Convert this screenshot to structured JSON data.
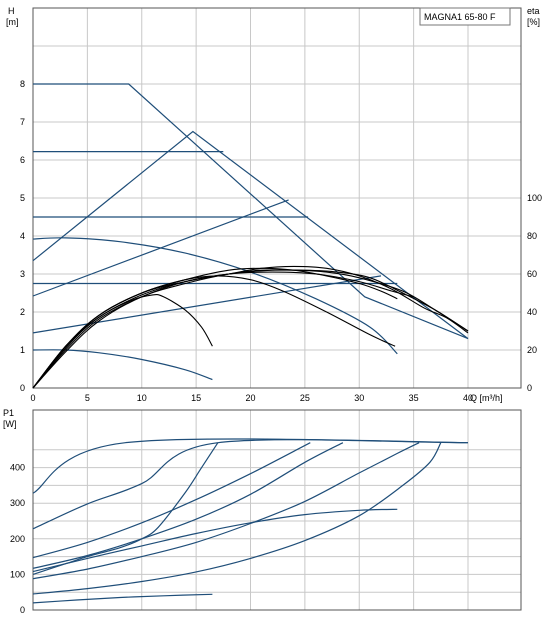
{
  "chart_data": [
    {
      "type": "line",
      "title": "MAGNA1 65-80 F",
      "ylabel_left": "H",
      "ylabel_left_unit": "[m]",
      "ylabel_right": "eta",
      "ylabel_right_unit": "[%]",
      "xlabel": "Q [m³/h]",
      "xlim": [
        0,
        40
      ],
      "ylim_left": [
        0,
        10
      ],
      "ylim_right": [
        0,
        200
      ],
      "x_ticks": [
        "0",
        "5",
        "10",
        "15",
        "20",
        "25",
        "30",
        "35",
        "40"
      ],
      "y_ticks_left": [
        "0",
        "1",
        "2",
        "3",
        "4",
        "5",
        "6",
        "7",
        "8"
      ],
      "y_ticks_right": [
        "0",
        "20",
        "40",
        "60",
        "80",
        "100"
      ],
      "grid": true,
      "head_lines": [
        {
          "points": [
            [
              0,
              8.0
            ],
            [
              8.8,
              8.0
            ],
            [
              30.5,
              2.4
            ],
            [
              40,
              1.3
            ]
          ]
        },
        {
          "points": [
            [
              0,
              6.22
            ],
            [
              17.5,
              6.22
            ]
          ]
        },
        {
          "points": [
            [
              0,
              4.5
            ],
            [
              25.3,
              4.5
            ]
          ]
        },
        {
          "points": [
            [
              0,
              2.75
            ],
            [
              33.5,
              2.75
            ]
          ]
        },
        {
          "points": [
            [
              0,
              3.35
            ],
            [
              14.7,
              6.75
            ],
            [
              40,
              1.3
            ]
          ]
        },
        {
          "points": [
            [
              0,
              2.42
            ],
            [
              23.5,
              4.95
            ]
          ]
        },
        {
          "points": [
            [
              0,
              1.45
            ],
            [
              32,
              2.95
            ]
          ]
        }
      ],
      "proportional_curves": [
        {
          "points": [
            [
              0,
              3.92
            ],
            [
              3,
              3.95
            ],
            [
              8,
              3.85
            ],
            [
              14,
              3.55
            ],
            [
              20,
              3.05
            ],
            [
              26,
              2.35
            ],
            [
              31,
              1.6
            ],
            [
              33.5,
              0.9
            ]
          ]
        },
        {
          "points": [
            [
              0,
              1.0
            ],
            [
              3,
              1.0
            ],
            [
              6,
              0.93
            ],
            [
              10,
              0.75
            ],
            [
              14,
              0.48
            ],
            [
              16.5,
              0.22
            ]
          ]
        }
      ],
      "efficiency_curves": [
        {
          "points": [
            [
              0,
              0
            ],
            [
              3,
              22
            ],
            [
              6,
              38
            ],
            [
              10,
              50
            ],
            [
              14,
              56
            ],
            [
              18,
              60
            ],
            [
              21,
              63
            ],
            [
              24,
              64
            ],
            [
              27,
              63
            ],
            [
              30,
              59
            ],
            [
              33,
              52
            ],
            [
              36,
              42
            ],
            [
              38,
              37
            ],
            [
              40,
              29
            ]
          ]
        },
        {
          "points": [
            [
              0,
              0
            ],
            [
              3,
              21
            ],
            [
              6,
              37
            ],
            [
              10,
              49
            ],
            [
              14,
              56
            ],
            [
              18,
              60
            ],
            [
              22,
              62
            ],
            [
              25,
              62
            ],
            [
              28,
              61
            ],
            [
              31,
              58
            ],
            [
              34,
              50
            ],
            [
              37,
              41
            ],
            [
              40,
              30
            ]
          ]
        },
        {
          "points": [
            [
              0,
              0
            ],
            [
              3,
              19
            ],
            [
              6,
              35
            ],
            [
              10,
              48
            ],
            [
              14,
              55
            ],
            [
              18,
              60
            ],
            [
              21,
              62
            ],
            [
              24,
              62
            ],
            [
              27,
              61
            ],
            [
              30,
              58
            ],
            [
              34,
              51
            ],
            [
              37,
              41
            ],
            [
              40,
              30
            ]
          ]
        },
        {
          "points": [
            [
              0,
              0
            ],
            [
              3,
              21
            ],
            [
              6,
              38
            ],
            [
              10,
              50
            ],
            [
              14,
              57
            ],
            [
              18,
              62
            ],
            [
              21,
              63
            ],
            [
              24,
              62
            ],
            [
              27,
              59
            ],
            [
              30,
              55
            ],
            [
              32,
              51
            ],
            [
              33.5,
              47
            ]
          ]
        },
        {
          "points": [
            [
              0,
              0
            ],
            [
              3,
              20
            ],
            [
              6,
              36
            ],
            [
              10,
              48
            ],
            [
              14,
              56
            ],
            [
              18,
              60
            ],
            [
              22,
              61
            ],
            [
              26,
              60
            ],
            [
              30,
              56
            ],
            [
              33,
              51
            ],
            [
              35,
              48
            ]
          ]
        },
        {
          "points": [
            [
              0,
              0
            ],
            [
              3,
              22
            ],
            [
              6,
              38
            ],
            [
              10,
              50
            ],
            [
              14,
              57
            ],
            [
              17,
              59
            ],
            [
              20,
              57
            ],
            [
              23,
              51
            ],
            [
              27,
              40
            ],
            [
              31,
              28
            ],
            [
              33.3,
              22
            ]
          ]
        },
        {
          "points": [
            [
              0,
              0
            ],
            [
              3,
              22
            ],
            [
              6,
              37
            ],
            [
              9,
              46
            ],
            [
              11,
              49
            ],
            [
              12,
              48
            ],
            [
              14,
              41
            ],
            [
              15.5,
              32
            ],
            [
              16.5,
              22
            ]
          ]
        }
      ]
    },
    {
      "type": "line",
      "ylabel": "P1",
      "ylabel_unit": "[W]",
      "xlim": [
        0,
        40
      ],
      "ylim": [
        0,
        500
      ],
      "y_ticks": [
        "0",
        "100",
        "200",
        "300",
        "400"
      ],
      "grid": true,
      "power_curves": [
        {
          "points": [
            [
              0,
              328
            ],
            [
              8.5,
              470
            ],
            [
              40,
              470
            ]
          ]
        },
        {
          "points": [
            [
              0,
              228
            ],
            [
              5,
              298
            ],
            [
              10,
              355
            ],
            [
              17,
              470
            ],
            [
              40,
              470
            ]
          ]
        },
        {
          "points": [
            [
              0,
              147
            ],
            [
              5,
              190
            ],
            [
              10,
              245
            ],
            [
              15,
              310
            ],
            [
              20,
              383
            ],
            [
              25.5,
              470
            ]
          ]
        },
        {
          "points": [
            [
              0,
              117
            ],
            [
              5,
              153
            ],
            [
              10,
              200
            ],
            [
              15,
              255
            ],
            [
              20,
              325
            ],
            [
              25,
              415
            ],
            [
              28.5,
              470
            ]
          ]
        },
        {
          "points": [
            [
              0,
              88
            ],
            [
              5,
              115
            ],
            [
              10,
              150
            ],
            [
              15,
              190
            ],
            [
              20,
              243
            ],
            [
              25,
              305
            ],
            [
              30,
              385
            ],
            [
              33.5,
              440
            ],
            [
              35.5,
              470
            ]
          ]
        },
        {
          "points": [
            [
              0,
              45
            ],
            [
              5,
              60
            ],
            [
              10,
              80
            ],
            [
              15,
              107
            ],
            [
              20,
              145
            ],
            [
              25,
              195
            ],
            [
              30,
              265
            ],
            [
              34,
              350
            ],
            [
              36.5,
              415
            ],
            [
              37.5,
              470
            ]
          ]
        },
        {
          "points": [
            [
              0,
              20
            ],
            [
              4,
              28
            ],
            [
              8,
              35
            ],
            [
              12,
              40
            ],
            [
              16.5,
              44
            ]
          ]
        },
        {
          "points": [
            [
              0,
              100
            ],
            [
              3,
              130
            ],
            [
              5,
              150
            ],
            [
              8,
              175
            ],
            [
              10,
              200
            ],
            [
              11.5,
              232
            ],
            [
              14,
              330
            ],
            [
              15.5,
              400
            ],
            [
              17,
              470
            ]
          ]
        },
        {
          "points": [
            [
              0,
              108
            ],
            [
              5,
              145
            ],
            [
              10,
              180
            ],
            [
              15,
              215
            ],
            [
              20,
              245
            ],
            [
              25,
              268
            ],
            [
              30,
              280
            ],
            [
              33.5,
              283
            ]
          ]
        }
      ]
    }
  ]
}
